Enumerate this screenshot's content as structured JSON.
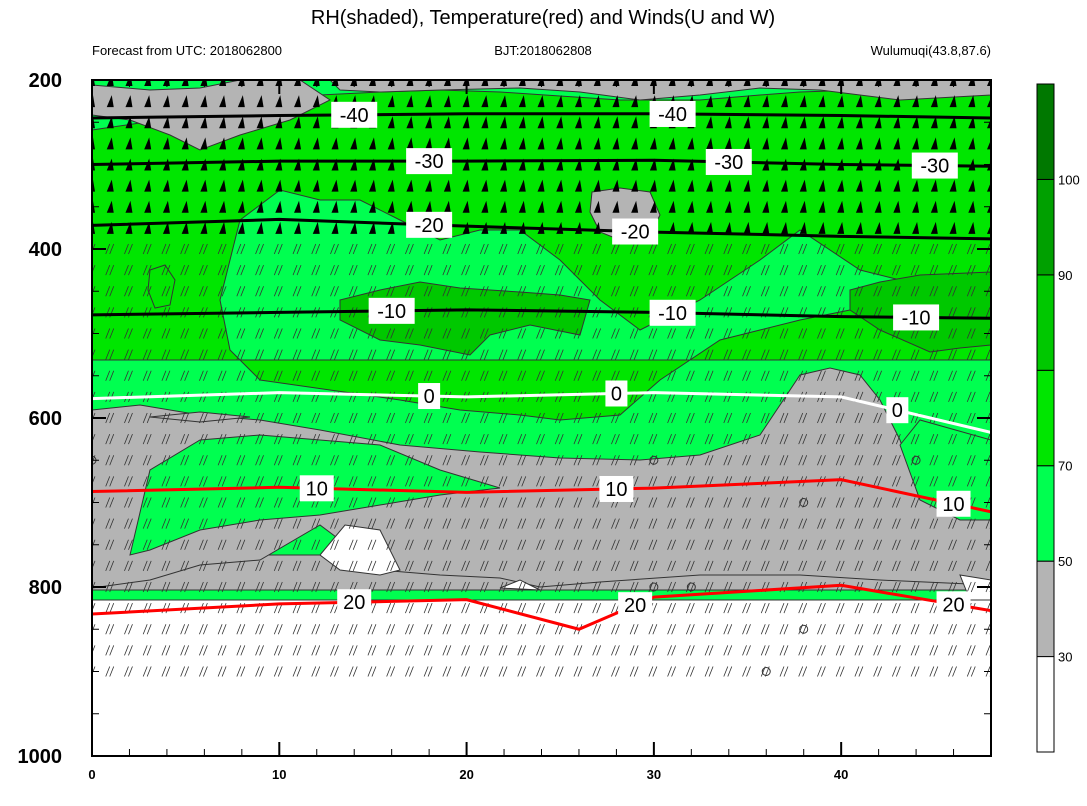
{
  "chart_data": {
    "type": "area",
    "title": "RH(shaded), Temperature(red) and Winds(U and W)",
    "subtitle_left": "Forecast from UTC: 2018062800",
    "subtitle_center": "BJT:2018062808",
    "subtitle_right": "Wulumuqi(43.8,87.6)",
    "xlim": [
      0,
      48
    ],
    "ylim": [
      1000,
      200
    ],
    "x_ticks": [
      0,
      10,
      20,
      30,
      40
    ],
    "y_ticks": [
      200,
      400,
      600,
      800,
      1000
    ],
    "colorbar": {
      "ticks": [
        30,
        50,
        70,
        90,
        100
      ],
      "levels": [
        {
          "min": 0,
          "max": 30,
          "color": "#ffffff"
        },
        {
          "min": 30,
          "max": 50,
          "color": "#b4b4b4"
        },
        {
          "min": 50,
          "max": 70,
          "color": "#00ff50"
        },
        {
          "min": 70,
          "max": 80,
          "color": "#00e600"
        },
        {
          "min": 80,
          "max": 90,
          "color": "#00c800"
        },
        {
          "min": 90,
          "max": 100,
          "color": "#00a000"
        },
        {
          "min": 100,
          "max": 110,
          "color": "#007800"
        }
      ]
    },
    "temperature_contours": [
      {
        "level": -40,
        "color": "#000000",
        "points": [
          [
            0,
            245
          ],
          [
            10,
            242
          ],
          [
            20,
            240
          ],
          [
            30,
            240
          ],
          [
            40,
            242
          ],
          [
            48,
            245
          ]
        ],
        "labels_x": [
          14,
          31
        ]
      },
      {
        "level": -30,
        "color": "#000000",
        "points": [
          [
            0,
            300
          ],
          [
            10,
            296
          ],
          [
            20,
            296
          ],
          [
            30,
            295
          ],
          [
            40,
            300
          ],
          [
            48,
            302
          ]
        ],
        "labels_x": [
          18,
          34,
          45
        ]
      },
      {
        "level": -20,
        "color": "#000000",
        "points": [
          [
            0,
            372
          ],
          [
            10,
            365
          ],
          [
            20,
            373
          ],
          [
            30,
            380
          ],
          [
            40,
            385
          ],
          [
            48,
            388
          ]
        ],
        "labels_x": [
          18,
          29
        ]
      },
      {
        "level": -10,
        "color": "#000000",
        "points": [
          [
            0,
            478
          ],
          [
            10,
            475
          ],
          [
            20,
            472
          ],
          [
            30,
            475
          ],
          [
            40,
            480
          ],
          [
            48,
            482
          ]
        ],
        "labels_x": [
          16,
          31,
          44
        ]
      },
      {
        "level": 0,
        "color": "#ffffff",
        "points": [
          [
            0,
            577
          ],
          [
            10,
            570
          ],
          [
            20,
            575
          ],
          [
            30,
            570
          ],
          [
            40,
            575
          ],
          [
            48,
            617
          ]
        ],
        "labels_x": [
          18,
          28,
          43
        ]
      },
      {
        "level": 10,
        "color": "#ff0000",
        "points": [
          [
            0,
            687
          ],
          [
            10,
            682
          ],
          [
            20,
            688
          ],
          [
            30,
            683
          ],
          [
            40,
            673
          ],
          [
            48,
            711
          ]
        ],
        "labels_x": [
          12,
          28,
          46
        ]
      },
      {
        "level": 20,
        "color": "#ff0000",
        "points": [
          [
            0,
            832
          ],
          [
            10,
            820
          ],
          [
            20,
            815
          ],
          [
            26,
            850
          ],
          [
            30,
            812
          ],
          [
            40,
            798
          ],
          [
            48,
            828
          ]
        ],
        "labels_x": [
          14,
          29,
          46
        ]
      }
    ],
    "isotherm_labels": [
      "-40",
      "-40",
      "-30",
      "-30",
      "-30",
      "-20",
      "-20",
      "-10",
      "-10",
      "-10",
      "0",
      "0",
      "0",
      "10",
      "10",
      "10",
      "20",
      "20",
      "20"
    ]
  }
}
